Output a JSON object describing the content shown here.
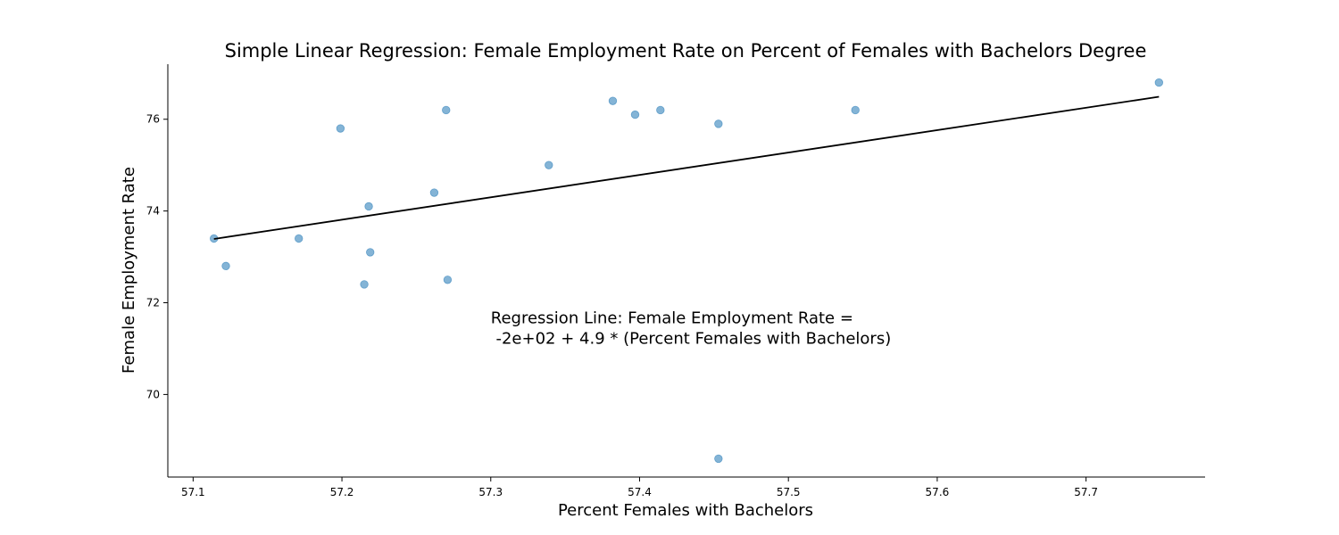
{
  "chart_data": {
    "type": "scatter",
    "title": "Simple Linear Regression: Female Employment Rate on Percent of Females with Bachelors Degree",
    "xlabel": "Percent Females with Bachelors",
    "ylabel": "Female Employment Rate",
    "xlim": [
      57.083,
      57.78
    ],
    "ylim": [
      68.2,
      77.2
    ],
    "xticks": [
      57.1,
      57.2,
      57.3,
      57.4,
      57.5,
      57.6,
      57.7
    ],
    "xtick_labels": [
      "57.1",
      "57.2",
      "57.3",
      "57.4",
      "57.5",
      "57.6",
      "57.7"
    ],
    "yticks": [
      70,
      72,
      74,
      76
    ],
    "ytick_labels": [
      "70",
      "72",
      "74",
      "76"
    ],
    "grid": false,
    "point_color": "#1f77b4",
    "line_color": "#000000",
    "points": [
      {
        "x": 57.114,
        "y": 73.4
      },
      {
        "x": 57.122,
        "y": 72.8
      },
      {
        "x": 57.171,
        "y": 73.4
      },
      {
        "x": 57.199,
        "y": 75.8
      },
      {
        "x": 57.215,
        "y": 72.4
      },
      {
        "x": 57.218,
        "y": 74.1
      },
      {
        "x": 57.219,
        "y": 73.1
      },
      {
        "x": 57.262,
        "y": 74.4
      },
      {
        "x": 57.27,
        "y": 76.2
      },
      {
        "x": 57.271,
        "y": 72.5
      },
      {
        "x": 57.339,
        "y": 75.0
      },
      {
        "x": 57.382,
        "y": 76.4
      },
      {
        "x": 57.397,
        "y": 76.1
      },
      {
        "x": 57.414,
        "y": 76.2
      },
      {
        "x": 57.453,
        "y": 75.9
      },
      {
        "x": 57.453,
        "y": 68.6
      },
      {
        "x": 57.545,
        "y": 76.2
      },
      {
        "x": 57.749,
        "y": 76.8
      }
    ],
    "regression_line": {
      "x": [
        57.114,
        57.749
      ],
      "y": [
        73.39,
        76.49
      ]
    },
    "annotation": {
      "line1": "Regression Line: Female Employment Rate =",
      "line2": " -2e+02 + 4.9 * (Percent Females with Bachelors)",
      "x": 57.3,
      "y": 71.55
    }
  }
}
